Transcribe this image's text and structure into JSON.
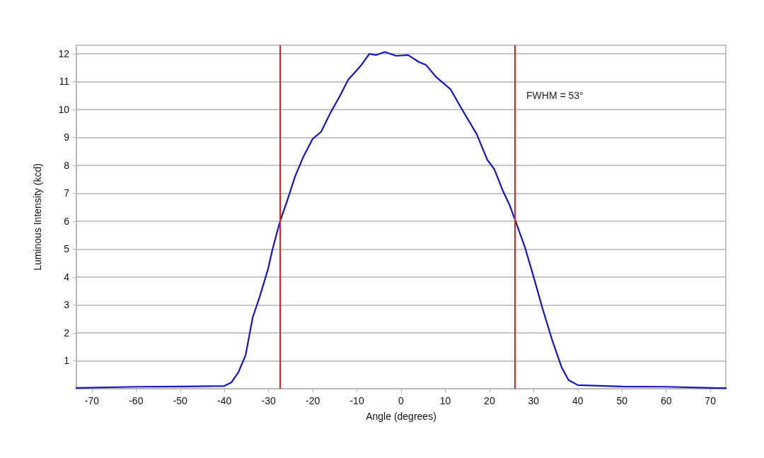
{
  "chart_data": {
    "type": "line",
    "xlabel": "Angle (degrees)",
    "ylabel": "Luminous Intensity (kcd)",
    "annotations": [
      "FWHM = 53°"
    ],
    "xlim": [
      -73.5,
      73.5
    ],
    "xticks": [
      -70,
      -60,
      -50,
      -40,
      -30,
      -20,
      -10,
      0,
      10,
      20,
      30,
      40,
      50,
      60,
      70
    ],
    "ylim": [
      0,
      12.3
    ],
    "yticks": [
      1,
      2,
      3,
      4,
      5,
      6,
      7,
      8,
      9,
      10,
      11,
      12
    ],
    "grid": "y",
    "marker": "none",
    "line_style": "solid",
    "ref_lines": [
      {
        "axis": "x",
        "value": -27.4,
        "color": "#e02424"
      },
      {
        "axis": "x",
        "value": 25.8,
        "color": "#e02424"
      }
    ],
    "series": [
      {
        "color": "#1414c8",
        "x": [
          -73.5,
          -60,
          -50,
          -40,
          -38.4,
          -36.8,
          -35.2,
          -33.6,
          -32.0,
          -30.1,
          -29.1,
          -27.4,
          -25.9,
          -24.0,
          -22.2,
          -20.0,
          -18.1,
          -16.0,
          -13.9,
          -12.0,
          -9.1,
          -7.2,
          -5.6,
          -3.7,
          -1.1,
          1.6,
          4.0,
          5.6,
          8.0,
          11.2,
          13.9,
          17.1,
          19.5,
          21.1,
          23.0,
          24.5,
          25.9,
          28.0,
          29.9,
          32.0,
          34.1,
          36.3,
          37.9,
          40.0,
          50.1,
          60.3,
          70.4,
          73.5
        ],
        "values": [
          0.03,
          0.07,
          0.08,
          0.1,
          0.23,
          0.6,
          1.2,
          2.55,
          3.3,
          4.3,
          5.0,
          6.0,
          6.68,
          7.6,
          8.28,
          8.95,
          9.2,
          9.88,
          10.47,
          11.06,
          11.57,
          11.99,
          11.95,
          12.06,
          11.92,
          11.95,
          11.7,
          11.6,
          11.15,
          10.72,
          9.97,
          9.12,
          8.2,
          7.86,
          7.1,
          6.6,
          6.0,
          5.08,
          4.06,
          2.88,
          1.79,
          0.78,
          0.31,
          0.13,
          0.08,
          0.07,
          0.03,
          0.02
        ]
      }
    ]
  }
}
